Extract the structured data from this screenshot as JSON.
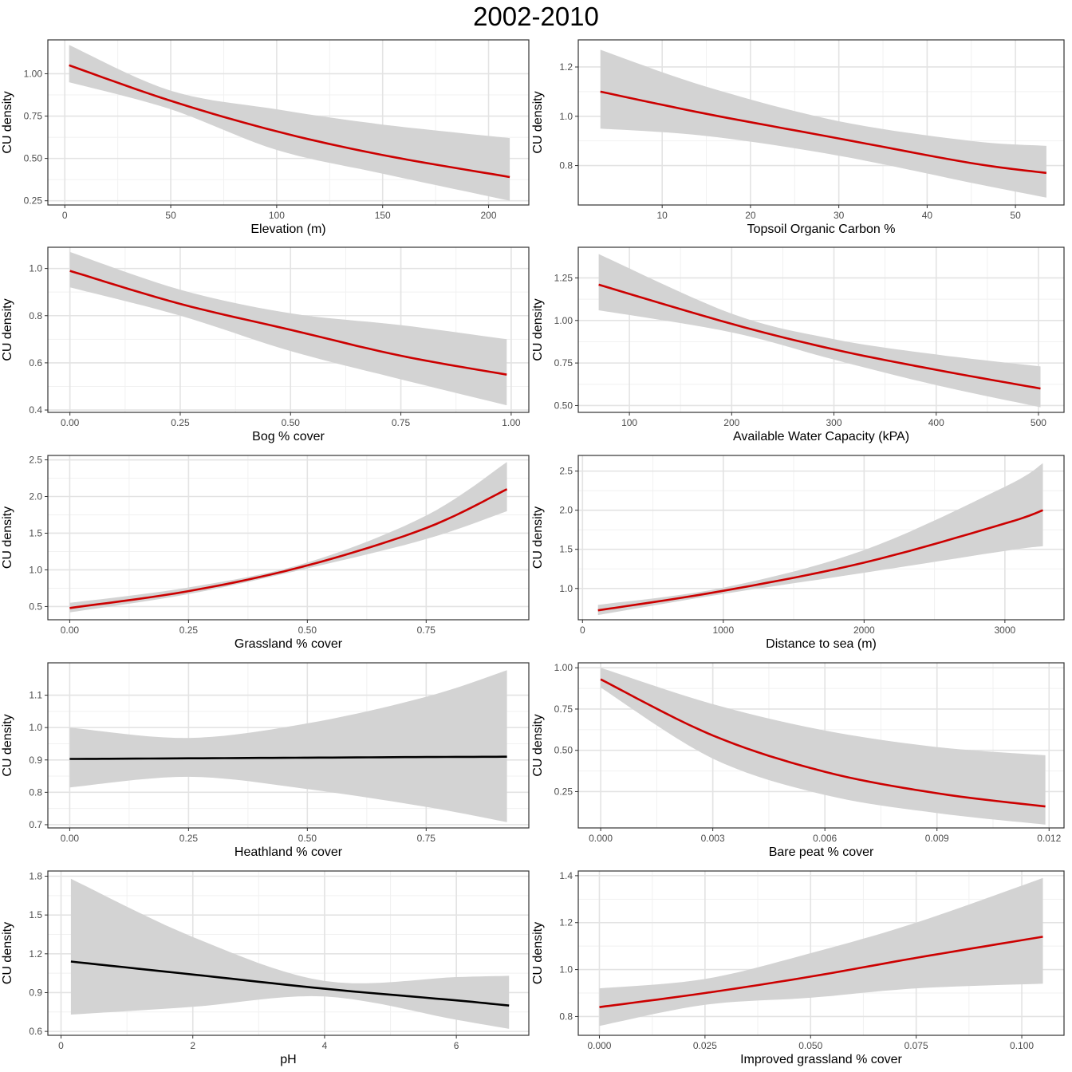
{
  "title": "2002-2010",
  "colors": {
    "significant": "#cc0000",
    "nonsignificant": "#000000",
    "ribbon": "#d3d3d3",
    "panel_border": "#333333",
    "grid_major": "#e3e3e3",
    "grid_minor": "#f1f1f1"
  },
  "chart_data": [
    {
      "type": "line",
      "title": "",
      "xlabel": "Elevation (m)",
      "ylabel": "CU density",
      "xlim": [
        -8,
        219
      ],
      "ylim": [
        0.225,
        1.2
      ],
      "xticks": [
        0,
        50,
        100,
        150,
        200
      ],
      "xtick_labels": [
        "0",
        "50",
        "100",
        "150",
        "200"
      ],
      "yticks": [
        0.25,
        0.5,
        0.75,
        1.0
      ],
      "ytick_labels": [
        "0.25",
        "0.50",
        "0.75",
        "1.00"
      ],
      "line_color": "#cc0000",
      "x": [
        2,
        50,
        100,
        150,
        210
      ],
      "y": [
        1.05,
        0.84,
        0.66,
        0.52,
        0.39
      ],
      "lower": [
        0.95,
        0.79,
        0.55,
        0.41,
        0.25
      ],
      "upper": [
        1.17,
        0.9,
        0.79,
        0.7,
        0.62
      ]
    },
    {
      "type": "line",
      "title": "",
      "xlabel": "Topsoil Organic Carbon %",
      "ylabel": "CU density",
      "xlim": [
        0.5,
        55.5
      ],
      "ylim": [
        0.64,
        1.31
      ],
      "xticks": [
        10,
        20,
        30,
        40,
        50
      ],
      "xtick_labels": [
        "10",
        "20",
        "30",
        "40",
        "50"
      ],
      "yticks": [
        0.8,
        1.0,
        1.2
      ],
      "ytick_labels": [
        "0.8",
        "1.0",
        "1.2"
      ],
      "line_color": "#cc0000",
      "x": [
        3,
        15,
        30,
        45,
        53.5
      ],
      "y": [
        1.1,
        1.01,
        0.91,
        0.81,
        0.77
      ],
      "lower": [
        0.95,
        0.92,
        0.84,
        0.73,
        0.67
      ],
      "upper": [
        1.27,
        1.12,
        0.98,
        0.9,
        0.88
      ]
    },
    {
      "type": "line",
      "title": "",
      "xlabel": "Bog % cover",
      "ylabel": "CU density",
      "xlim": [
        -0.05,
        1.04
      ],
      "ylim": [
        0.39,
        1.09
      ],
      "xticks": [
        0,
        0.25,
        0.5,
        0.75,
        1.0
      ],
      "xtick_labels": [
        "0.00",
        "0.25",
        "0.50",
        "0.75",
        "1.00"
      ],
      "yticks": [
        0.4,
        0.6,
        0.8,
        1.0
      ],
      "ytick_labels": [
        "0.4",
        "0.6",
        "0.8",
        "1.0"
      ],
      "line_color": "#cc0000",
      "x": [
        0,
        0.25,
        0.5,
        0.75,
        0.99
      ],
      "y": [
        0.99,
        0.85,
        0.74,
        0.63,
        0.55
      ],
      "lower": [
        0.92,
        0.8,
        0.65,
        0.53,
        0.42
      ],
      "upper": [
        1.07,
        0.91,
        0.81,
        0.76,
        0.7
      ]
    },
    {
      "type": "line",
      "title": "",
      "xlabel": "Available Water Capacity (kPA)",
      "ylabel": "CU density",
      "xlim": [
        50,
        525
      ],
      "ylim": [
        0.46,
        1.43
      ],
      "xticks": [
        100,
        200,
        300,
        400,
        500
      ],
      "xtick_labels": [
        "100",
        "200",
        "300",
        "400",
        "500"
      ],
      "yticks": [
        0.5,
        0.75,
        1.0,
        1.25
      ],
      "ytick_labels": [
        "0.50",
        "0.75",
        "1.00",
        "1.25"
      ],
      "line_color": "#cc0000",
      "x": [
        70,
        200,
        300,
        400,
        502
      ],
      "y": [
        1.21,
        0.98,
        0.83,
        0.71,
        0.6
      ],
      "lower": [
        1.06,
        0.93,
        0.77,
        0.62,
        0.49
      ],
      "upper": [
        1.39,
        1.04,
        0.89,
        0.8,
        0.73
      ]
    },
    {
      "type": "line",
      "title": "",
      "xlabel": "Grassland % cover",
      "ylabel": "CU density",
      "xlim": [
        -0.046,
        0.966
      ],
      "ylim": [
        0.32,
        2.56
      ],
      "xticks": [
        0,
        0.25,
        0.5,
        0.75
      ],
      "xtick_labels": [
        "0.00",
        "0.25",
        "0.50",
        "0.75"
      ],
      "yticks": [
        0.5,
        1.0,
        1.5,
        2.0,
        2.5
      ],
      "ytick_labels": [
        "0.5",
        "1.0",
        "1.5",
        "2.0",
        "2.5"
      ],
      "line_color": "#cc0000",
      "x": [
        0,
        0.25,
        0.5,
        0.75,
        0.92
      ],
      "y": [
        0.48,
        0.71,
        1.06,
        1.57,
        2.1
      ],
      "lower": [
        0.42,
        0.67,
        1.02,
        1.42,
        1.8
      ],
      "upper": [
        0.55,
        0.76,
        1.1,
        1.74,
        2.47
      ]
    },
    {
      "type": "line",
      "title": "",
      "xlabel": "Distance to sea (m)",
      "ylabel": "CU density",
      "xlim": [
        -30,
        3420
      ],
      "ylim": [
        0.6,
        2.7
      ],
      "xticks": [
        0,
        1000,
        2000,
        3000
      ],
      "xtick_labels": [
        "0",
        "1000",
        "2000",
        "3000"
      ],
      "yticks": [
        1.0,
        1.5,
        2.0,
        2.5
      ],
      "ytick_labels": [
        "1.0",
        "1.5",
        "2.0",
        "2.5"
      ],
      "line_color": "#cc0000",
      "x": [
        110,
        1000,
        2000,
        3000,
        3270
      ],
      "y": [
        0.72,
        0.97,
        1.33,
        1.83,
        2.0
      ],
      "lower": [
        0.66,
        0.93,
        1.2,
        1.48,
        1.54
      ],
      "upper": [
        0.79,
        1.01,
        1.49,
        2.3,
        2.6
      ]
    },
    {
      "type": "line",
      "title": "",
      "xlabel": "Heathland % cover",
      "ylabel": "CU density",
      "xlim": [
        -0.046,
        0.966
      ],
      "ylim": [
        0.69,
        1.2
      ],
      "xticks": [
        0,
        0.25,
        0.5,
        0.75
      ],
      "xtick_labels": [
        "0.00",
        "0.25",
        "0.50",
        "0.75"
      ],
      "yticks": [
        0.7,
        0.8,
        0.9,
        1.0,
        1.1
      ],
      "ytick_labels": [
        "0.7",
        "0.8",
        "0.9",
        "1.0",
        "1.1"
      ],
      "line_color": "#000000",
      "x": [
        0,
        0.25,
        0.5,
        0.75,
        0.92
      ],
      "y": [
        0.903,
        0.905,
        0.907,
        0.909,
        0.91
      ],
      "lower": [
        0.815,
        0.848,
        0.81,
        0.755,
        0.708
      ],
      "upper": [
        1.0,
        0.968,
        1.013,
        1.095,
        1.177
      ]
    },
    {
      "type": "line",
      "title": "",
      "xlabel": "Bare peat % cover",
      "ylabel": "CU density",
      "xlim": [
        -0.0006,
        0.0124
      ],
      "ylim": [
        0.03,
        1.03
      ],
      "xticks": [
        0,
        0.003,
        0.006,
        0.009,
        0.012
      ],
      "xtick_labels": [
        "0.000",
        "0.003",
        "0.006",
        "0.009",
        "0.012"
      ],
      "yticks": [
        0.25,
        0.5,
        0.75,
        1.0
      ],
      "ytick_labels": [
        "0.25",
        "0.50",
        "0.75",
        "1.00"
      ],
      "line_color": "#cc0000",
      "x": [
        0,
        0.003,
        0.006,
        0.009,
        0.0119
      ],
      "y": [
        0.93,
        0.59,
        0.37,
        0.24,
        0.16
      ],
      "lower": [
        0.88,
        0.45,
        0.23,
        0.12,
        0.05
      ],
      "upper": [
        1.0,
        0.78,
        0.62,
        0.52,
        0.47
      ]
    },
    {
      "type": "line",
      "title": "",
      "xlabel": "pH",
      "ylabel": "CU density",
      "xlim": [
        -0.2,
        7.1
      ],
      "ylim": [
        0.57,
        1.84
      ],
      "xticks": [
        0,
        2,
        4,
        6
      ],
      "xtick_labels": [
        "0",
        "2",
        "4",
        "6"
      ],
      "yticks": [
        0.6,
        0.9,
        1.2,
        1.5,
        1.8
      ],
      "ytick_labels": [
        "0.6",
        "0.9",
        "1.2",
        "1.5",
        "1.8"
      ],
      "line_color": "#000000",
      "x": [
        0.15,
        2,
        4,
        6,
        6.8
      ],
      "y": [
        1.14,
        1.04,
        0.93,
        0.84,
        0.8
      ],
      "lower": [
        0.73,
        0.79,
        0.87,
        0.69,
        0.62
      ],
      "upper": [
        1.78,
        1.33,
        0.99,
        1.02,
        1.03
      ]
    },
    {
      "type": "line",
      "title": "",
      "xlabel": "Improved grassland % cover",
      "ylabel": "CU density",
      "xlim": [
        -0.005,
        0.11
      ],
      "ylim": [
        0.72,
        1.42
      ],
      "xticks": [
        0,
        0.025,
        0.05,
        0.075,
        0.1
      ],
      "xtick_labels": [
        "0.000",
        "0.025",
        "0.050",
        "0.075",
        "0.100"
      ],
      "yticks": [
        0.8,
        1.0,
        1.2,
        1.4
      ],
      "ytick_labels": [
        "0.8",
        "1.0",
        "1.2",
        "1.4"
      ],
      "line_color": "#cc0000",
      "x": [
        0,
        0.025,
        0.05,
        0.075,
        0.105
      ],
      "y": [
        0.84,
        0.9,
        0.97,
        1.05,
        1.14
      ],
      "lower": [
        0.76,
        0.85,
        0.88,
        0.92,
        0.94
      ],
      "upper": [
        0.92,
        0.96,
        1.07,
        1.2,
        1.39
      ]
    }
  ]
}
